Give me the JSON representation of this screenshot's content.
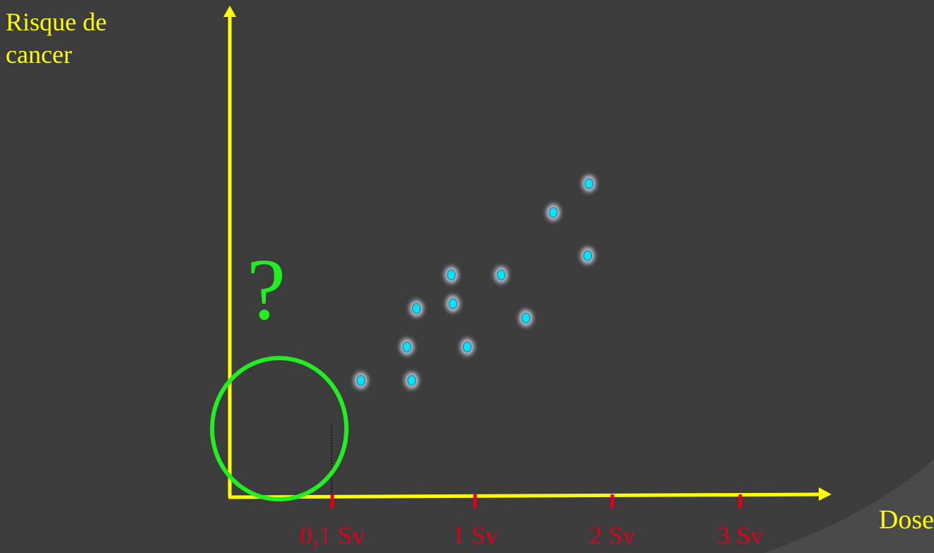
{
  "colors": {
    "background": "#3c3c3c",
    "axis": "#ffff00",
    "label_text": "#ffff00",
    "tick_marks": "#e0001a",
    "points": "#00e5ff",
    "point_glow": "#bfc6d6",
    "highlight_circle": "#22ee22",
    "question_mark": "#22ee22"
  },
  "chart_data": {
    "type": "scatter",
    "xlabel": "Dose",
    "ylabel": "Risque de\ncancer",
    "x_ticks": [
      {
        "value": 0.1,
        "label": "0,1 Sv"
      },
      {
        "value": 1,
        "label": "1 Sv"
      },
      {
        "value": 2,
        "label": "2 Sv"
      },
      {
        "value": 3,
        "label": "3 Sv"
      }
    ],
    "xlim": [
      -0.66,
      4.0
    ],
    "ylim": [
      0,
      1.0
    ],
    "points": [
      {
        "x": 0.28,
        "y": 0.24
      },
      {
        "x": 0.6,
        "y": 0.24
      },
      {
        "x": 0.57,
        "y": 0.31
      },
      {
        "x": 0.63,
        "y": 0.39
      },
      {
        "x": 0.86,
        "y": 0.4
      },
      {
        "x": 0.85,
        "y": 0.46
      },
      {
        "x": 0.95,
        "y": 0.31
      },
      {
        "x": 1.19,
        "y": 0.46
      },
      {
        "x": 1.37,
        "y": 0.37
      },
      {
        "x": 1.57,
        "y": 0.59
      },
      {
        "x": 1.83,
        "y": 0.65
      },
      {
        "x": 1.82,
        "y": 0.5
      }
    ],
    "annotation": "?",
    "highlight_region": {
      "x_from": -0.66,
      "x_to": 0.1
    }
  }
}
